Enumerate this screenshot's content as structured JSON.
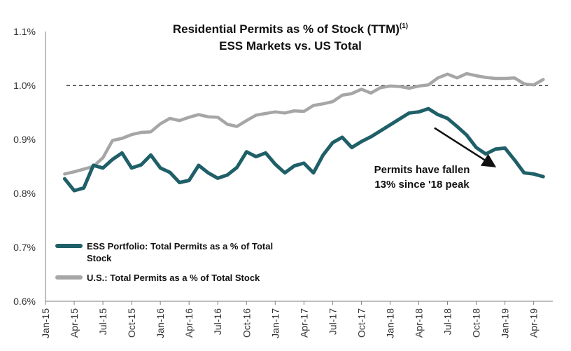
{
  "chart_data": {
    "type": "line",
    "title": "Residential Permits as % of Stock (TTM)",
    "title_superscript": "(1)",
    "subtitle": "ESS Markets vs. US Total",
    "xlabel": "",
    "ylabel": "",
    "ylim": [
      0.6,
      1.1
    ],
    "y_ticks": [
      "0.6%",
      "0.7%",
      "0.8%",
      "0.9%",
      "1.0%",
      "1.1%"
    ],
    "x_ticks": [
      "Jan-15",
      "Apr-15",
      "Jul-15",
      "Oct-15",
      "Jan-16",
      "Apr-16",
      "Jul-16",
      "Oct-16",
      "Jan-17",
      "Apr-17",
      "Jul-17",
      "Oct-17",
      "Jan-18",
      "Apr-18",
      "Jul-18",
      "Oct-18",
      "Jan-19",
      "Apr-19"
    ],
    "x_start": "2015-01",
    "x_end": "2019-06",
    "reference_line": {
      "value": 1.0,
      "style": "dashed",
      "color": "#333333"
    },
    "grid": false,
    "legend_position": "bottom-left",
    "series": [
      {
        "name": "ESS Portfolio: Total Permits as a % of Total Stock",
        "color": "#1f5f68",
        "x": [
          "2015-03",
          "2015-04",
          "2015-05",
          "2015-06",
          "2015-07",
          "2015-08",
          "2015-09",
          "2015-10",
          "2015-11",
          "2015-12",
          "2016-01",
          "2016-02",
          "2016-03",
          "2016-04",
          "2016-05",
          "2016-06",
          "2016-07",
          "2016-08",
          "2016-09",
          "2016-10",
          "2016-11",
          "2016-12",
          "2017-01",
          "2017-02",
          "2017-03",
          "2017-04",
          "2017-05",
          "2017-06",
          "2017-07",
          "2017-08",
          "2017-09",
          "2017-10",
          "2017-11",
          "2017-12",
          "2018-01",
          "2018-02",
          "2018-03",
          "2018-04",
          "2018-05",
          "2018-06",
          "2018-07",
          "2018-08",
          "2018-09",
          "2018-10",
          "2018-11",
          "2018-12",
          "2019-01",
          "2019-02",
          "2019-03",
          "2019-04",
          "2019-05"
        ],
        "values": [
          0.827,
          0.805,
          0.81,
          0.852,
          0.847,
          0.863,
          0.875,
          0.847,
          0.853,
          0.871,
          0.847,
          0.839,
          0.82,
          0.824,
          0.852,
          0.838,
          0.828,
          0.834,
          0.848,
          0.877,
          0.868,
          0.875,
          0.854,
          0.838,
          0.851,
          0.856,
          0.838,
          0.871,
          0.894,
          0.904,
          0.885,
          0.896,
          0.905,
          0.916,
          0.927,
          0.938,
          0.949,
          0.951,
          0.957,
          0.946,
          0.939,
          0.924,
          0.908,
          0.885,
          0.873,
          0.882,
          0.884,
          0.862,
          0.838,
          0.836,
          0.831
        ]
      },
      {
        "name": "U.S.: Total Permits as a % of Total Stock",
        "color": "#a6a6a6",
        "x": [
          "2015-03",
          "2015-04",
          "2015-05",
          "2015-06",
          "2015-07",
          "2015-08",
          "2015-09",
          "2015-10",
          "2015-11",
          "2015-12",
          "2016-01",
          "2016-02",
          "2016-03",
          "2016-04",
          "2016-05",
          "2016-06",
          "2016-07",
          "2016-08",
          "2016-09",
          "2016-10",
          "2016-11",
          "2016-12",
          "2017-01",
          "2017-02",
          "2017-03",
          "2017-04",
          "2017-05",
          "2017-06",
          "2017-07",
          "2017-08",
          "2017-09",
          "2017-10",
          "2017-11",
          "2017-12",
          "2018-01",
          "2018-02",
          "2018-03",
          "2018-04",
          "2018-05",
          "2018-06",
          "2018-07",
          "2018-08",
          "2018-09",
          "2018-10",
          "2018-11",
          "2018-12",
          "2019-01",
          "2019-02",
          "2019-03",
          "2019-04",
          "2019-05"
        ],
        "values": [
          0.836,
          0.84,
          0.845,
          0.85,
          0.866,
          0.898,
          0.902,
          0.909,
          0.913,
          0.914,
          0.929,
          0.939,
          0.935,
          0.941,
          0.946,
          0.942,
          0.941,
          0.928,
          0.924,
          0.935,
          0.945,
          0.948,
          0.951,
          0.949,
          0.953,
          0.952,
          0.963,
          0.966,
          0.97,
          0.982,
          0.985,
          0.993,
          0.986,
          0.996,
          0.999,
          0.998,
          0.995,
          0.999,
          1.001,
          1.014,
          1.021,
          1.014,
          1.022,
          1.018,
          1.015,
          1.013,
          1.013,
          1.014,
          1.003,
          1.001,
          1.011
        ]
      }
    ],
    "annotation": {
      "lines": [
        "Permits have fallen",
        "13% since '18 peak"
      ],
      "arrow_from": [
        "2018-06",
        0.92
      ],
      "arrow_to": [
        "2018-12",
        0.84
      ]
    }
  }
}
